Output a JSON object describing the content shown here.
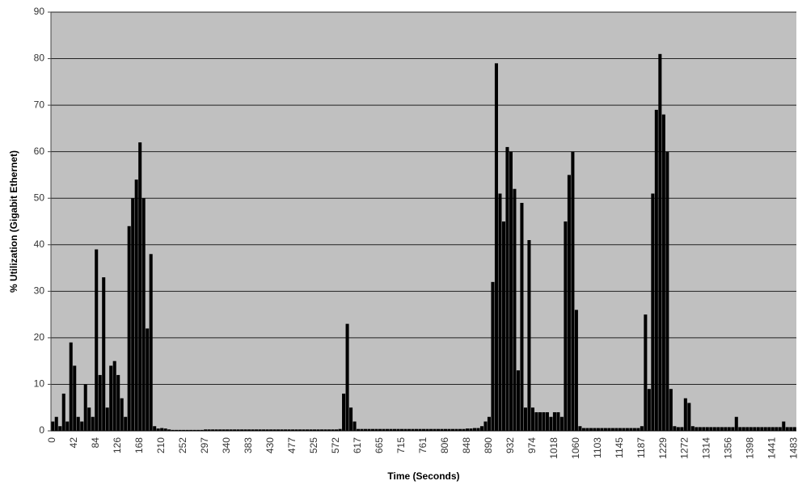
{
  "chart_data": {
    "type": "bar",
    "y_label": "% Utilization (Gigabit Ethernet)",
    "x_label": "Time (Seconds)",
    "color": "#000000",
    "background": "#c0c0c0",
    "grid": true,
    "ylim": [
      0,
      90
    ],
    "yticks": [
      0,
      10,
      20,
      30,
      40,
      50,
      60,
      70,
      80,
      90
    ],
    "categories": [
      "0",
      null,
      null,
      null,
      null,
      null,
      "42",
      null,
      null,
      null,
      null,
      null,
      "84",
      null,
      null,
      null,
      null,
      null,
      "126",
      null,
      null,
      null,
      null,
      null,
      "168",
      null,
      null,
      null,
      null,
      null,
      "210",
      null,
      null,
      null,
      null,
      null,
      "252",
      null,
      null,
      null,
      null,
      null,
      "297",
      null,
      null,
      null,
      null,
      null,
      "340",
      null,
      null,
      null,
      null,
      null,
      "383",
      null,
      null,
      null,
      null,
      null,
      "430",
      null,
      null,
      null,
      null,
      null,
      "477",
      null,
      null,
      null,
      null,
      null,
      "525",
      null,
      null,
      null,
      null,
      null,
      "572",
      null,
      null,
      null,
      null,
      null,
      "617",
      null,
      null,
      null,
      null,
      null,
      "665",
      null,
      null,
      null,
      null,
      null,
      "715",
      null,
      null,
      null,
      null,
      null,
      "761",
      null,
      null,
      null,
      null,
      null,
      "806",
      null,
      null,
      null,
      null,
      null,
      "848",
      null,
      null,
      null,
      null,
      null,
      "890",
      null,
      null,
      null,
      null,
      null,
      "932",
      null,
      null,
      null,
      null,
      null,
      "974",
      null,
      null,
      null,
      null,
      null,
      "1018",
      null,
      null,
      null,
      null,
      null,
      "1060",
      null,
      null,
      null,
      null,
      null,
      "1103",
      null,
      null,
      null,
      null,
      null,
      "1145",
      null,
      null,
      null,
      null,
      null,
      "1187",
      null,
      null,
      null,
      null,
      null,
      "1229",
      null,
      null,
      null,
      null,
      null,
      "1272",
      null,
      null,
      null,
      null,
      null,
      "1314",
      null,
      null,
      null,
      null,
      null,
      "1356",
      null,
      null,
      null,
      null,
      null,
      "1398",
      null,
      null,
      null,
      null,
      null,
      "1441",
      null,
      null,
      null,
      null,
      null,
      "1483"
    ],
    "values": [
      2,
      3,
      1,
      8,
      2,
      19,
      14,
      3,
      2,
      10,
      5,
      3,
      39,
      12,
      33,
      5,
      14,
      15,
      12,
      7,
      3,
      44,
      50,
      54,
      62,
      50,
      22,
      38,
      1,
      0.5,
      0.6,
      0.5,
      0.3,
      0.2,
      0.2,
      0.2,
      0.2,
      0.2,
      0.2,
      0.2,
      0.2,
      0.2,
      0.3,
      0.3,
      0.3,
      0.3,
      0.3,
      0.3,
      0.3,
      0.3,
      0.3,
      0.3,
      0.3,
      0.3,
      0.3,
      0.3,
      0.3,
      0.3,
      0.3,
      0.3,
      0.3,
      0.3,
      0.3,
      0.3,
      0.3,
      0.3,
      0.3,
      0.3,
      0.3,
      0.3,
      0.3,
      0.3,
      0.3,
      0.3,
      0.3,
      0.3,
      0.3,
      0.3,
      0.3,
      0.4,
      8,
      23,
      5,
      2,
      0.4,
      0.4,
      0.4,
      0.4,
      0.4,
      0.4,
      0.4,
      0.4,
      0.4,
      0.4,
      0.4,
      0.4,
      0.4,
      0.4,
      0.4,
      0.4,
      0.4,
      0.4,
      0.4,
      0.4,
      0.4,
      0.4,
      0.4,
      0.4,
      0.4,
      0.4,
      0.4,
      0.4,
      0.4,
      0.4,
      0.5,
      0.5,
      0.6,
      0.6,
      1,
      2,
      3,
      32,
      79,
      51,
      45,
      61,
      60,
      52,
      13,
      49,
      5,
      41,
      5,
      4,
      4,
      4,
      4,
      3,
      4,
      4,
      3,
      45,
      55,
      60,
      26,
      1,
      0.6,
      0.6,
      0.6,
      0.6,
      0.6,
      0.6,
      0.6,
      0.6,
      0.6,
      0.6,
      0.6,
      0.6,
      0.6,
      0.6,
      0.6,
      0.6,
      1,
      25,
      9,
      51,
      69,
      81,
      68,
      60,
      9,
      1,
      0.8,
      0.8,
      7,
      6,
      1,
      0.8,
      0.8,
      0.8,
      0.8,
      0.8,
      0.8,
      0.8,
      0.8,
      0.8,
      0.8,
      0.8,
      3,
      0.8,
      0.8,
      0.8,
      0.8,
      0.8,
      0.8,
      0.8,
      0.8,
      0.8,
      0.8,
      0.8,
      0.8,
      2,
      0.8,
      0.8,
      0.8
    ]
  }
}
